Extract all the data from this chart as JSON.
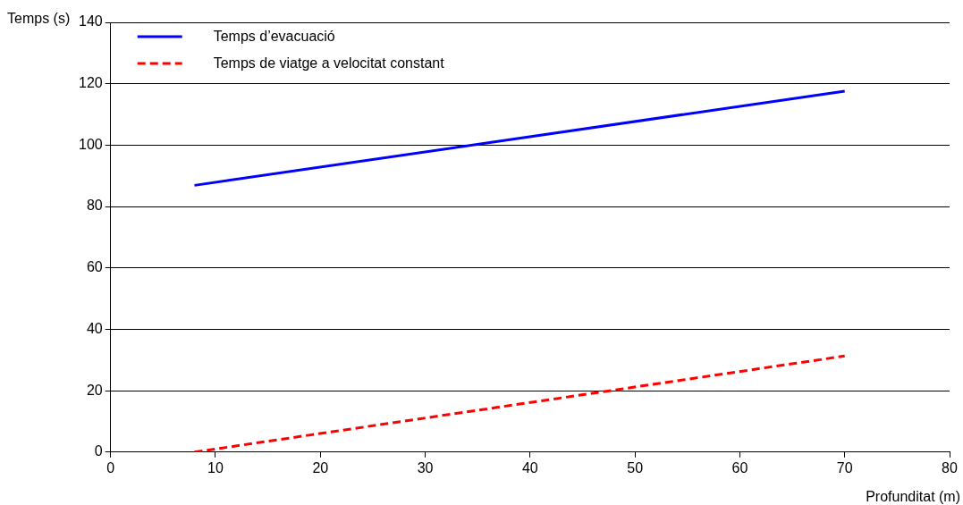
{
  "chart_data": {
    "type": "line",
    "xlabel": "Profunditat (m)",
    "ylabel": "Temps (s)",
    "xlim": [
      0,
      80
    ],
    "xticks": [
      0,
      10,
      20,
      30,
      40,
      50,
      60,
      70,
      80
    ],
    "ylim": [
      0,
      140
    ],
    "yticks": [
      0,
      20,
      40,
      60,
      80,
      100,
      120,
      140
    ],
    "grid": "y",
    "legend": "top left",
    "marker": "none",
    "x": [
      8,
      70
    ],
    "series": [
      {
        "name": "Temps d’evacuació",
        "color": "#0000ff",
        "values": [
          86.9,
          117.6
        ],
        "line_style": "solid"
      },
      {
        "name": "Temps de viatge a velocitat constant",
        "color": "#ff0000",
        "values": [
          0,
          31.3
        ],
        "line_style": "dashed"
      }
    ]
  }
}
